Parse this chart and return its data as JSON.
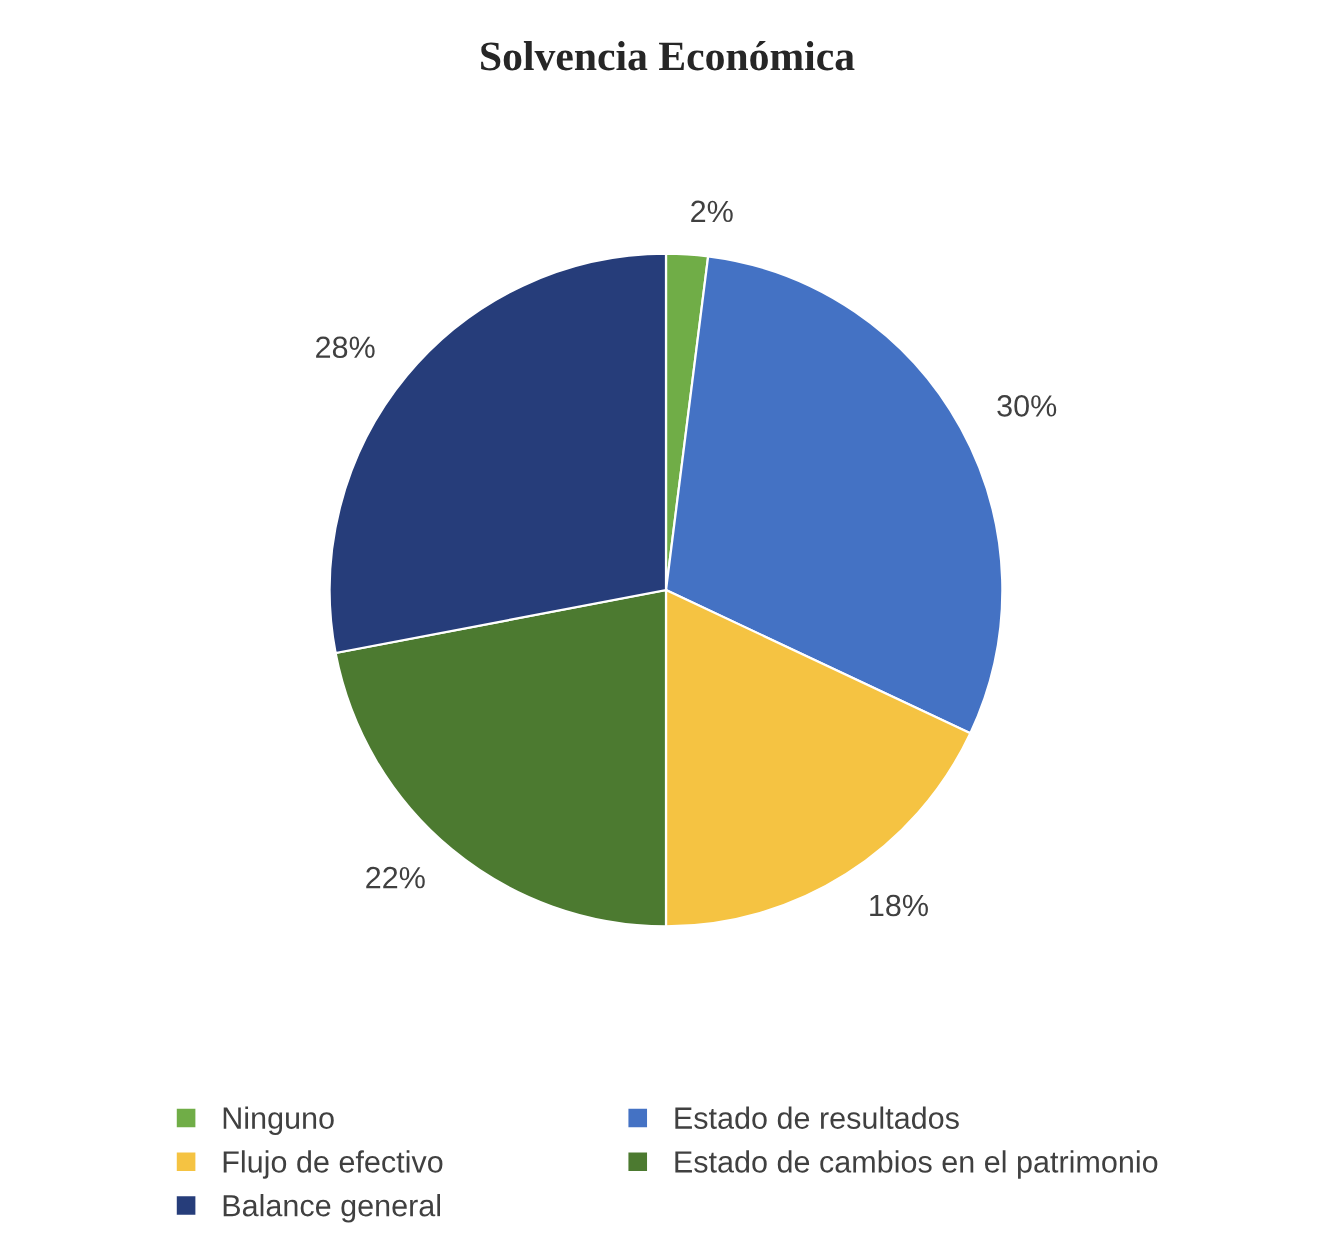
{
  "chart_data": {
    "type": "pie",
    "title": "Solvencia Económica",
    "categories": [
      "Ninguno",
      "Estado de resultados",
      "Flujo de efectivo",
      "Estado de cambios en el patrimonio",
      "Balance general"
    ],
    "values": [
      2,
      30,
      18,
      22,
      28
    ],
    "colors": [
      "#70ad47",
      "#4472c4",
      "#f5c342",
      "#4c7a30",
      "#263d7a"
    ],
    "value_labels": [
      "2%",
      "30%",
      "18%",
      "22%",
      "28%"
    ],
    "legend": "bottom"
  }
}
